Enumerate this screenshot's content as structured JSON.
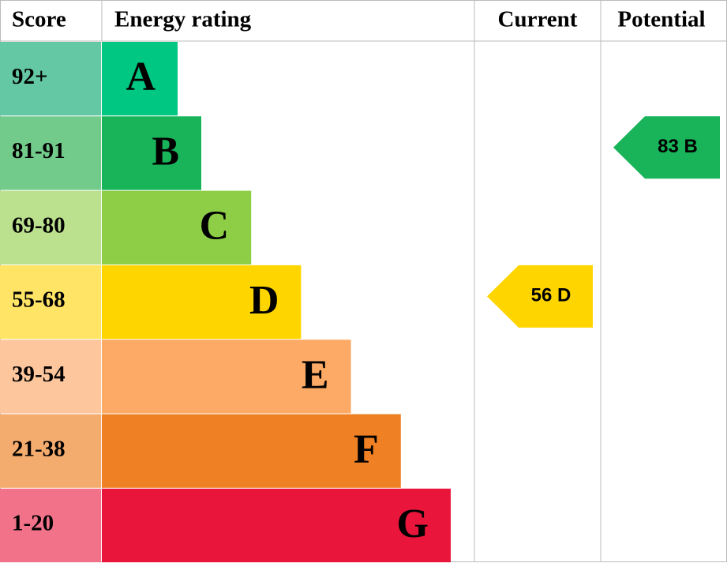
{
  "header": {
    "score": "Score",
    "rating": "Energy rating",
    "current": "Current",
    "potential": "Potential"
  },
  "rows": [
    {
      "score": "92+",
      "letter": "A",
      "color": "#00c781",
      "score_color": "#64c8a4"
    },
    {
      "score": "81-91",
      "letter": "B",
      "color": "#19b459",
      "score_color": "#73cb8b"
    },
    {
      "score": "69-80",
      "letter": "C",
      "color": "#8dce46",
      "score_color": "#bbe08e"
    },
    {
      "score": "55-68",
      "letter": "D",
      "color": "#ffd500",
      "score_color": "#ffe466"
    },
    {
      "score": "39-54",
      "letter": "E",
      "color": "#fcaa65",
      "score_color": "#fdc69c"
    },
    {
      "score": "21-38",
      "letter": "F",
      "color": "#ef8023",
      "score_color": "#f4ab6e"
    },
    {
      "score": "1-20",
      "letter": "G",
      "color": "#e9153b",
      "score_color": "#f2728a"
    }
  ],
  "current": "56 D",
  "potential": "83 B"
}
